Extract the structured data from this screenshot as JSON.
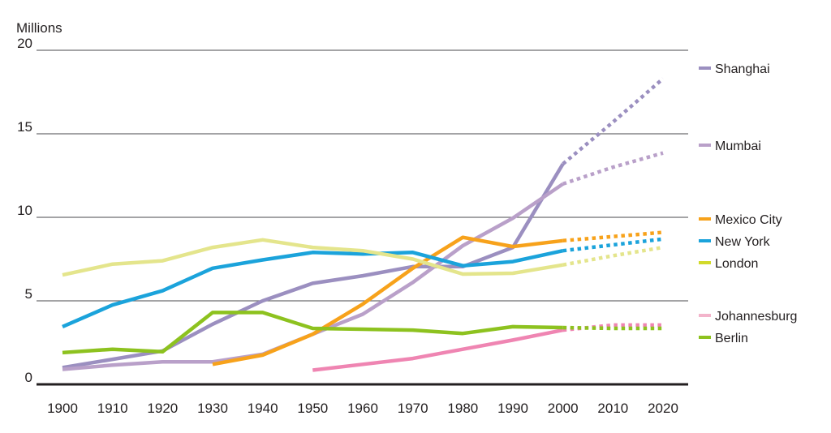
{
  "chart_data": {
    "type": "line",
    "title": "",
    "ylabel": "Millions",
    "xlabel": "",
    "ylim": [
      0,
      20
    ],
    "yticks": [
      0,
      5,
      10,
      15,
      20
    ],
    "xlim": [
      1900,
      2020
    ],
    "x": [
      1900,
      1910,
      1920,
      1930,
      1940,
      1950,
      1960,
      1970,
      1980,
      1990,
      2000,
      2010,
      2020
    ],
    "xtick_labels": [
      "1900",
      "1910",
      "1920",
      "1930",
      "1940",
      "1950",
      "1960",
      "1970",
      "1980",
      "1990",
      "2000",
      "2010",
      "2020"
    ],
    "grid": "horizontal",
    "legend_position": "right",
    "projection_note": "values after 2000 drawn dotted (projection)",
    "series": [
      {
        "name": "Shanghai",
        "color": "#9b8fc0",
        "legend_color": "#9b8fc0",
        "x": [
          1900,
          1910,
          1920,
          1930,
          1940,
          1950,
          1960,
          1970,
          1980,
          1990,
          2000
        ],
        "values": [
          1.0,
          1.5,
          2.0,
          3.6,
          5.0,
          6.05,
          6.5,
          7.05,
          7.05,
          8.2,
          13.2
        ],
        "projection_x": [
          2000,
          2010,
          2020
        ],
        "projection_values": [
          13.2,
          15.7,
          18.3
        ]
      },
      {
        "name": "Mumbai",
        "color": "#b9a0c9",
        "legend_color": "#b9a0c9",
        "x": [
          1900,
          1910,
          1920,
          1930,
          1940,
          1950,
          1960,
          1970,
          1980,
          1990,
          2000
        ],
        "values": [
          0.9,
          1.15,
          1.35,
          1.35,
          1.8,
          3.0,
          4.2,
          6.1,
          8.3,
          9.95,
          12.0
        ],
        "projection_x": [
          2000,
          2010,
          2020
        ],
        "projection_values": [
          12.0,
          13.0,
          13.85
        ]
      },
      {
        "name": "Mexico City",
        "color": "#f7a21b",
        "legend_color": "#f7a21b",
        "x": [
          1930,
          1940,
          1950,
          1960,
          1970,
          1980,
          1990,
          2000
        ],
        "values": [
          1.2,
          1.75,
          3.0,
          4.8,
          6.95,
          8.8,
          8.25,
          8.6
        ],
        "projection_x": [
          2000,
          2010,
          2020
        ],
        "projection_values": [
          8.6,
          8.85,
          9.1
        ]
      },
      {
        "name": "New York",
        "color": "#1ba3db",
        "legend_color": "#1ba3db",
        "x": [
          1900,
          1910,
          1920,
          1930,
          1940,
          1950,
          1960,
          1970,
          1980,
          1990,
          2000
        ],
        "values": [
          3.45,
          4.75,
          5.6,
          6.95,
          7.45,
          7.9,
          7.8,
          7.9,
          7.1,
          7.35,
          8.0
        ],
        "projection_x": [
          2000,
          2010,
          2020
        ],
        "projection_values": [
          8.0,
          8.35,
          8.7
        ]
      },
      {
        "name": "London",
        "color": "#e4e58c",
        "legend_color": "#d2da2a",
        "x": [
          1900,
          1910,
          1920,
          1930,
          1940,
          1950,
          1960,
          1970,
          1980,
          1990,
          2000
        ],
        "values": [
          6.55,
          7.2,
          7.4,
          8.2,
          8.65,
          8.2,
          8.0,
          7.5,
          6.6,
          6.65,
          7.15
        ],
        "projection_x": [
          2000,
          2010,
          2020
        ],
        "projection_values": [
          7.15,
          7.7,
          8.2
        ]
      },
      {
        "name": "Johannesburg",
        "color": "#ef85b2",
        "legend_color": "#f3b4cb",
        "x": [
          1950,
          1960,
          1970,
          1980,
          1990,
          2000
        ],
        "values": [
          0.85,
          1.2,
          1.55,
          2.1,
          2.65,
          3.25
        ],
        "projection_x": [
          2000,
          2010,
          2020
        ],
        "projection_values": [
          3.25,
          3.55,
          3.55
        ]
      },
      {
        "name": "Berlin",
        "color": "#8dc21f",
        "legend_color": "#8dc21f",
        "x": [
          1900,
          1910,
          1920,
          1930,
          1940,
          1950,
          1960,
          1970,
          1980,
          1990,
          2000
        ],
        "values": [
          1.9,
          2.1,
          1.95,
          4.3,
          4.3,
          3.35,
          3.3,
          3.25,
          3.05,
          3.45,
          3.4
        ],
        "projection_x": [
          2000,
          2010,
          2020
        ],
        "projection_values": [
          3.4,
          3.35,
          3.35
        ]
      }
    ]
  }
}
